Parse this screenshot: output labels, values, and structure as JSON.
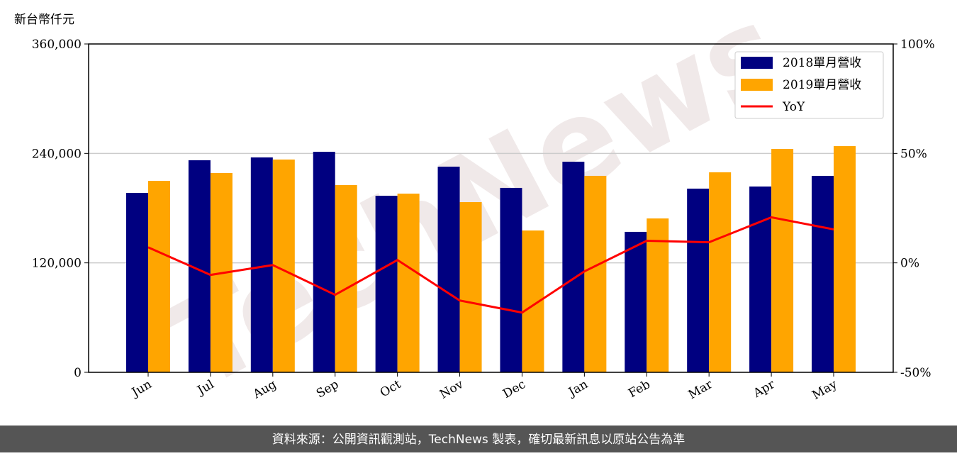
{
  "chart_data": {
    "type": "bar_line",
    "y_label": "新台幣仟元",
    "watermark": "TechNews",
    "footer": "資料來源：公開資訊觀測站，TechNews 製表，確切最新訊息以原站公告為準",
    "categories": [
      "Jun",
      "Jul",
      "Aug",
      "Sep",
      "Oct",
      "Nov",
      "Dec",
      "Jan",
      "Feb",
      "Mar",
      "Apr",
      "May"
    ],
    "series": [
      {
        "name": "2018單月營收",
        "color": "#000080",
        "values": [
          196700,
          232500,
          235600,
          241800,
          193600,
          225500,
          202200,
          230900,
          154000,
          201400,
          203700,
          215400
        ]
      },
      {
        "name": "2019單月營收",
        "color": "#ffa500",
        "values": [
          209900,
          218500,
          233300,
          205300,
          195900,
          186600,
          155500,
          215400,
          168700,
          219300,
          244900,
          248000
        ]
      },
      {
        "name": "YoY",
        "color": "#ff0000",
        "axis": "y2",
        "values": [
          7.1,
          -5.5,
          -1.0,
          -14.6,
          1.3,
          -17.2,
          -22.7,
          -3.9,
          10.1,
          9.4,
          20.8,
          15.3
        ]
      }
    ],
    "ylim": [
      0,
      360000
    ],
    "yticks": [
      0,
      {
        "value": 120000,
        "label": "120,000"
      },
      {
        "value": 240000,
        "label": "240,000"
      },
      {
        "value": 360000,
        "label": "360,000"
      }
    ],
    "y2lim": [
      -50,
      100
    ],
    "y2ticks": [
      {
        "value": -50,
        "label": "-50%"
      },
      {
        "value": 0,
        "label": "0%"
      },
      {
        "value": 50,
        "label": "50%"
      },
      {
        "value": 100,
        "label": "100%"
      }
    ],
    "grid": true,
    "legend": "upper right"
  }
}
